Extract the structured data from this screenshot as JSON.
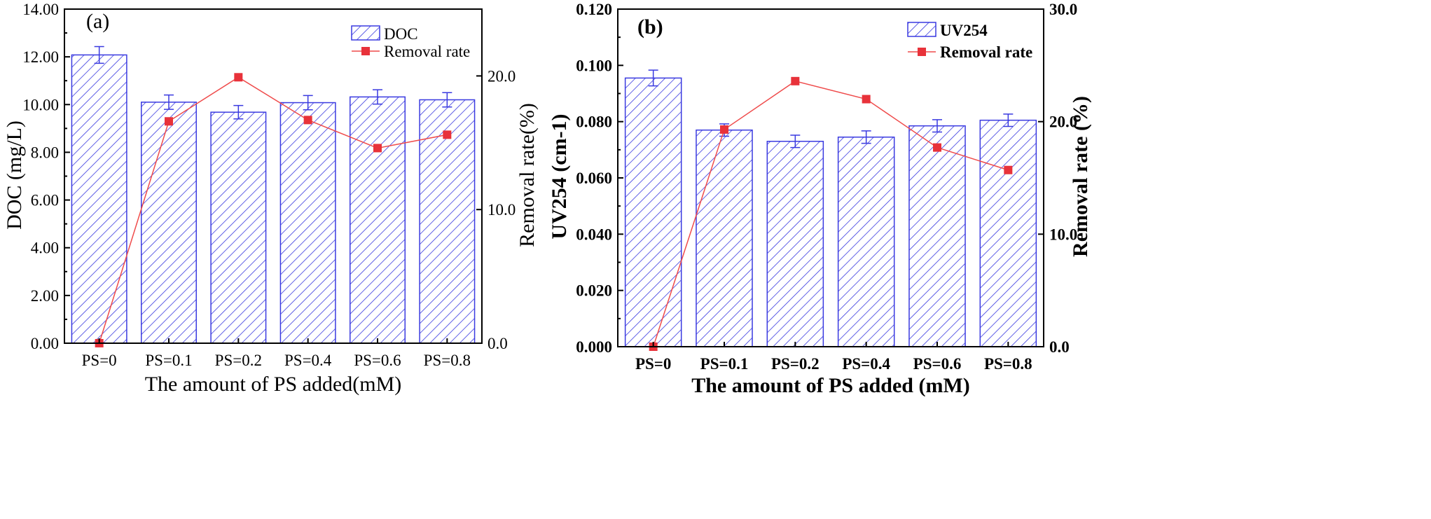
{
  "chart_data": [
    {
      "type": "bar",
      "panel_label": "(a)",
      "bold": false,
      "categories": [
        "PS=0",
        "PS=0.1",
        "PS=0.2",
        "PS=0.4",
        "PS=0.6",
        "PS=0.8"
      ],
      "xlabel": "The amount of PS added(mM)",
      "ylabel": "DOC (mg/L)",
      "y2label": "Removal rate(%)",
      "ylim": [
        0,
        14
      ],
      "yticks": [
        "0.00",
        "2.00",
        "4.00",
        "6.00",
        "8.00",
        "10.00",
        "12.00",
        "14.00"
      ],
      "y2lim": [
        0,
        25
      ],
      "y2ticks": [
        "0.0",
        "10.0",
        "20.0"
      ],
      "series": [
        {
          "name": "DOC",
          "axis": "left",
          "kind": "bar",
          "values": [
            12.08,
            10.1,
            9.68,
            10.08,
            10.32,
            10.2
          ],
          "errors": [
            0.35,
            0.3,
            0.28,
            0.3,
            0.3,
            0.3
          ]
        },
        {
          "name": "Removal rate",
          "axis": "right",
          "kind": "line",
          "values": [
            0.0,
            16.6,
            19.9,
            16.7,
            14.6,
            15.6
          ]
        }
      ],
      "legend": {
        "position": "top-right"
      }
    },
    {
      "type": "bar",
      "panel_label": "(b)",
      "bold": true,
      "categories": [
        "PS=0",
        "PS=0.1",
        "PS=0.2",
        "PS=0.4",
        "PS=0.6",
        "PS=0.8"
      ],
      "xlabel": "The amount of PS added (mM)",
      "ylabel": "UV254 (cm-1)",
      "y2label": "Removal rate (%)",
      "ylim": [
        0,
        0.12
      ],
      "yticks": [
        "0.000",
        "0.020",
        "0.040",
        "0.060",
        "0.080",
        "0.100",
        "0.120"
      ],
      "y2lim": [
        0,
        30
      ],
      "y2ticks": [
        "0.0",
        "10.0",
        "20.0",
        "30.0"
      ],
      "series": [
        {
          "name": "UV254",
          "axis": "left",
          "kind": "bar",
          "values": [
            0.0955,
            0.077,
            0.073,
            0.0745,
            0.0785,
            0.0805
          ],
          "errors": [
            0.0028,
            0.0022,
            0.0022,
            0.0022,
            0.0022,
            0.0022
          ]
        },
        {
          "name": "Removal rate",
          "axis": "right",
          "kind": "line",
          "values": [
            0.0,
            19.3,
            23.6,
            22.0,
            17.7,
            15.7
          ]
        }
      ],
      "legend": {
        "position": "top-right"
      }
    }
  ],
  "colors": {
    "bar": "#3a3ae0",
    "line": "#ef4b4b",
    "marker": "#e8323a"
  }
}
